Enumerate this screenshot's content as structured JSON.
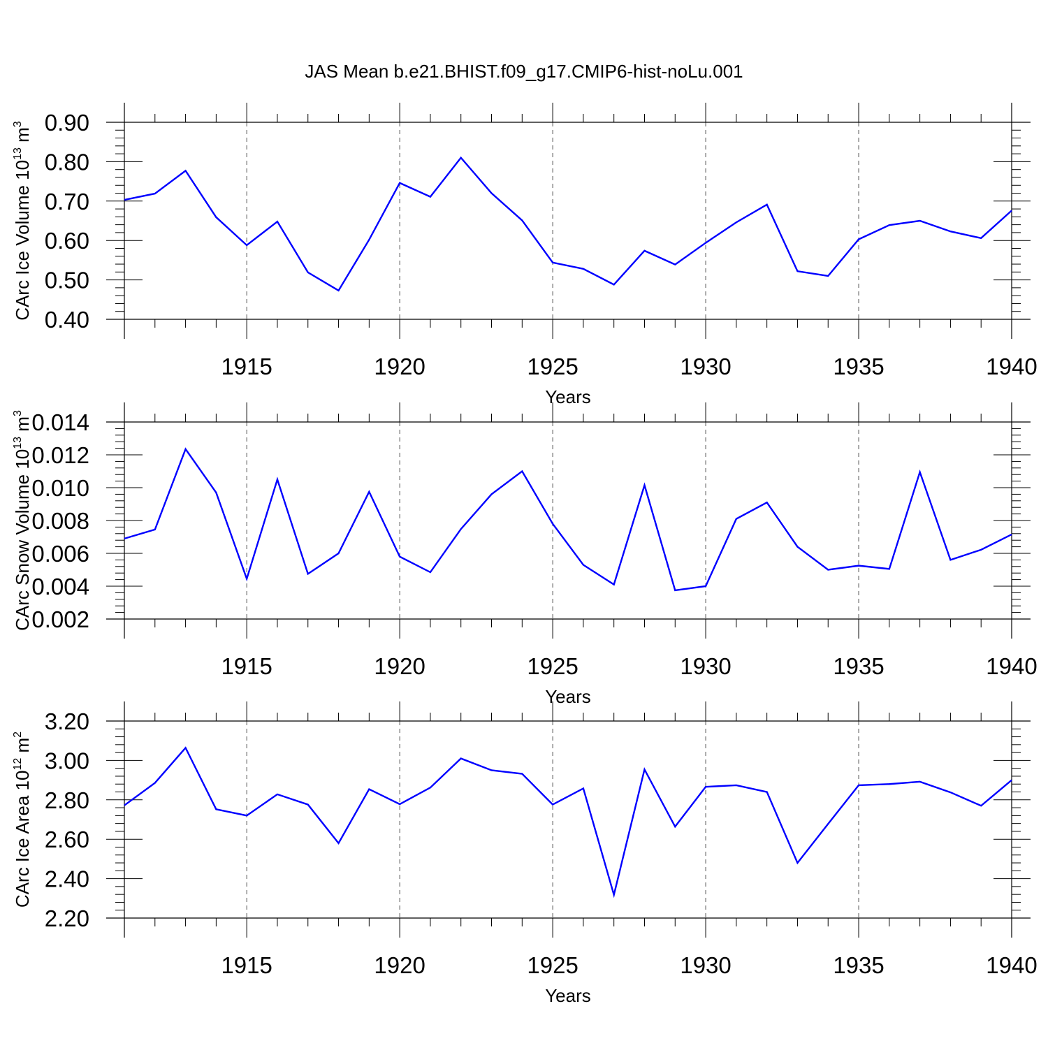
{
  "figure_title": "JAS Mean b.e21.BHIST.f09_g17.CMIP6-hist-noLu.001",
  "colors": {
    "line": "#0000ff",
    "axes": "#000000",
    "grid": "#555555"
  },
  "chart_data": [
    {
      "type": "line",
      "title": "JAS Mean b.e21.BHIST.f09_g17.CMIP6-hist-noLu.001",
      "xlabel": "Years",
      "ylabel": {
        "prefix": "CArc Ice Volume 10",
        "exponent": "13",
        "unit": " m",
        "unit_exponent": "3"
      },
      "xlim": [
        1911,
        1940
      ],
      "ylim": [
        0.4,
        0.9
      ],
      "grid": "vertical dashed at major ticks",
      "x_ticks": [
        1915,
        1920,
        1925,
        1930,
        1935,
        1940
      ],
      "x_tick_labels": [
        "1915",
        "1920",
        "1925",
        "1930",
        "1935",
        "1940"
      ],
      "y_ticks": [
        0.4,
        0.5,
        0.6,
        0.7,
        0.8,
        0.9
      ],
      "y_tick_labels": [
        "0.40",
        "0.50",
        "0.60",
        "0.70",
        "0.80",
        "0.90"
      ],
      "series": [
        {
          "name": "CArc Ice Volume",
          "x": [
            1911,
            1912,
            1913,
            1914,
            1915,
            1916,
            1917,
            1918,
            1919,
            1920,
            1921,
            1922,
            1923,
            1924,
            1925,
            1926,
            1927,
            1928,
            1929,
            1930,
            1931,
            1932,
            1933,
            1934,
            1935,
            1936,
            1937,
            1938,
            1939,
            1940
          ],
          "values": [
            0.703,
            0.719,
            0.777,
            0.659,
            0.588,
            0.648,
            0.519,
            0.473,
            0.602,
            0.746,
            0.711,
            0.81,
            0.72,
            0.651,
            0.544,
            0.528,
            0.488,
            0.574,
            0.539,
            0.594,
            0.646,
            0.691,
            0.522,
            0.51,
            0.603,
            0.639,
            0.65,
            0.623,
            0.606,
            0.676
          ]
        }
      ]
    },
    {
      "type": "line",
      "xlabel": "Years",
      "ylabel": {
        "prefix": "CArc Snow Volume 10",
        "exponent": "13",
        "unit": " m",
        "unit_exponent": "3"
      },
      "xlim": [
        1911,
        1940
      ],
      "ylim": [
        0.002,
        0.014
      ],
      "grid": "vertical dashed at major ticks",
      "x_ticks": [
        1915,
        1920,
        1925,
        1930,
        1935,
        1940
      ],
      "x_tick_labels": [
        "1915",
        "1920",
        "1925",
        "1930",
        "1935",
        "1940"
      ],
      "y_ticks": [
        0.002,
        0.004,
        0.006,
        0.008,
        0.01,
        0.012,
        0.014
      ],
      "y_tick_labels": [
        "0.002",
        "0.004",
        "0.006",
        "0.008",
        "0.010",
        "0.012",
        "0.014"
      ],
      "series": [
        {
          "name": "CArc Snow Volume",
          "x": [
            1911,
            1912,
            1913,
            1914,
            1915,
            1916,
            1917,
            1918,
            1919,
            1920,
            1921,
            1922,
            1923,
            1924,
            1925,
            1926,
            1927,
            1928,
            1929,
            1930,
            1931,
            1932,
            1933,
            1934,
            1935,
            1936,
            1937,
            1938,
            1939,
            1940
          ],
          "values": [
            0.0069,
            0.00745,
            0.01235,
            0.0097,
            0.00445,
            0.0105,
            0.00475,
            0.006,
            0.00975,
            0.0058,
            0.00485,
            0.00748,
            0.0096,
            0.011,
            0.0078,
            0.0053,
            0.0041,
            0.01015,
            0.00375,
            0.004,
            0.0081,
            0.0091,
            0.0064,
            0.005,
            0.00525,
            0.00505,
            0.01095,
            0.0056,
            0.00622,
            0.00715
          ]
        }
      ]
    },
    {
      "type": "line",
      "xlabel": "Years",
      "ylabel": {
        "prefix": "CArc Ice Area 10",
        "exponent": "12",
        "unit": " m",
        "unit_exponent": "2"
      },
      "xlim": [
        1911,
        1940
      ],
      "ylim": [
        2.2,
        3.2
      ],
      "grid": "vertical dashed at major ticks",
      "x_ticks": [
        1915,
        1920,
        1925,
        1930,
        1935,
        1940
      ],
      "x_tick_labels": [
        "1915",
        "1920",
        "1925",
        "1930",
        "1935",
        "1940"
      ],
      "y_ticks": [
        2.2,
        2.4,
        2.6,
        2.8,
        3.0,
        3.2
      ],
      "y_tick_labels": [
        "2.20",
        "2.40",
        "2.60",
        "2.80",
        "3.00",
        "3.20"
      ],
      "series": [
        {
          "name": "CArc Ice Area",
          "x": [
            1911,
            1912,
            1913,
            1914,
            1915,
            1916,
            1917,
            1918,
            1919,
            1920,
            1921,
            1922,
            1923,
            1924,
            1925,
            1926,
            1927,
            1928,
            1929,
            1930,
            1931,
            1932,
            1933,
            1934,
            1935,
            1936,
            1937,
            1938,
            1939,
            1940
          ],
          "values": [
            2.772,
            2.886,
            3.064,
            2.752,
            2.72,
            2.828,
            2.776,
            2.58,
            2.854,
            2.778,
            2.862,
            3.01,
            2.95,
            2.932,
            2.776,
            2.858,
            2.318,
            2.954,
            2.664,
            2.866,
            2.874,
            2.84,
            2.48,
            2.678,
            2.874,
            2.88,
            2.892,
            2.838,
            2.77,
            2.9
          ]
        }
      ]
    }
  ]
}
